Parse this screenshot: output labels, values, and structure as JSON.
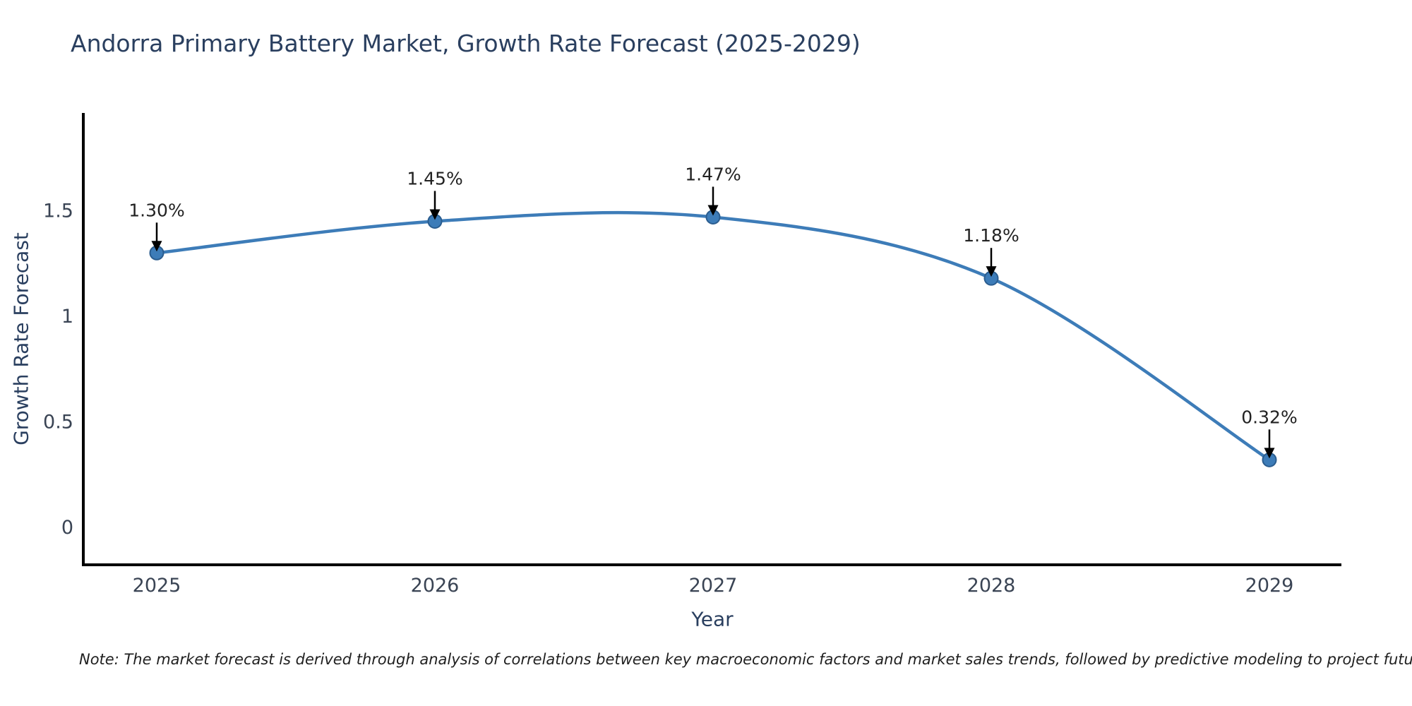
{
  "chart_data": {
    "type": "line",
    "title": "Andorra Primary Battery Market, Growth Rate Forecast (2025-2029)",
    "xlabel": "Year",
    "ylabel": "Growth Rate Forecast",
    "line_shape": "spline",
    "grid": false,
    "legend": false,
    "x": [
      2025,
      2026,
      2027,
      2028,
      2029
    ],
    "values": [
      1.3,
      1.45,
      1.47,
      1.18,
      0.32
    ],
    "point_labels": [
      "1.30%",
      "1.45%",
      "1.47%",
      "1.18%",
      "0.32%"
    ],
    "x_tick_labels": [
      "2025",
      "2026",
      "2027",
      "2028",
      "2029"
    ],
    "y_ticks": [
      0,
      0.5,
      1,
      1.5
    ],
    "y_tick_labels": [
      "0",
      "0.5",
      "1",
      "1.5"
    ],
    "ylim": [
      -0.18,
      1.96
    ],
    "colors": {
      "line": "#3d7cb8",
      "marker_fill": "#3d7cb8",
      "marker_edge": "#2b5d8f",
      "axis_line": "#000000",
      "tick_text": "#3a4454",
      "annotation": "#222222",
      "title_text": "#2a3f5f"
    }
  },
  "note": {
    "text": "Note: The market forecast is derived through analysis of correlations between key macroeconomic factors and market sales trends, followed by predictive modeling to project future sales"
  }
}
